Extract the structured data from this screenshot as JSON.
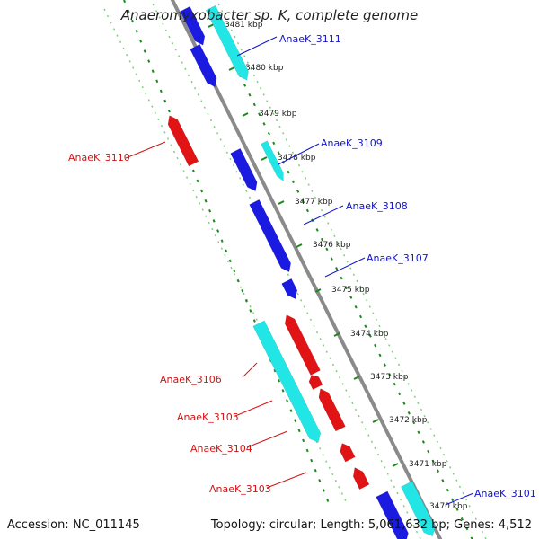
{
  "title": "Anaeromyxobacter sp. K, complete genome",
  "footer": {
    "accession": "Accession: NC_011145",
    "stats": "Topology: circular; Length: 5,061,632 bp; Genes: 4,512"
  },
  "colors": {
    "forward_gene": "#1a1ae0",
    "reverse_gene": "#e01414",
    "rna_gene": "#22e6e6",
    "misc_gene": "#c8c8c8",
    "backbone": "#8a8a8a",
    "ruler": "#1a8a1a",
    "label_forward": "#1414c8",
    "label_reverse": "#d21414"
  },
  "ticks": [
    "3481 kbp",
    "3480 kbp",
    "3479 kbp",
    "3478 kbp",
    "3477 kbp",
    "3476 kbp",
    "3475 kbp",
    "3474 kbp",
    "3473 kbp",
    "3472 kbp",
    "3471 kbp",
    "3470 kbp"
  ],
  "gene_labels": {
    "forward": [
      "AnaeK_3111",
      "AnaeK_3109",
      "AnaeK_3108",
      "AnaeK_3107",
      "AnaeK_3101"
    ],
    "reverse": [
      "AnaeK_3110",
      "AnaeK_3106",
      "AnaeK_3105",
      "AnaeK_3104",
      "AnaeK_3103"
    ]
  }
}
